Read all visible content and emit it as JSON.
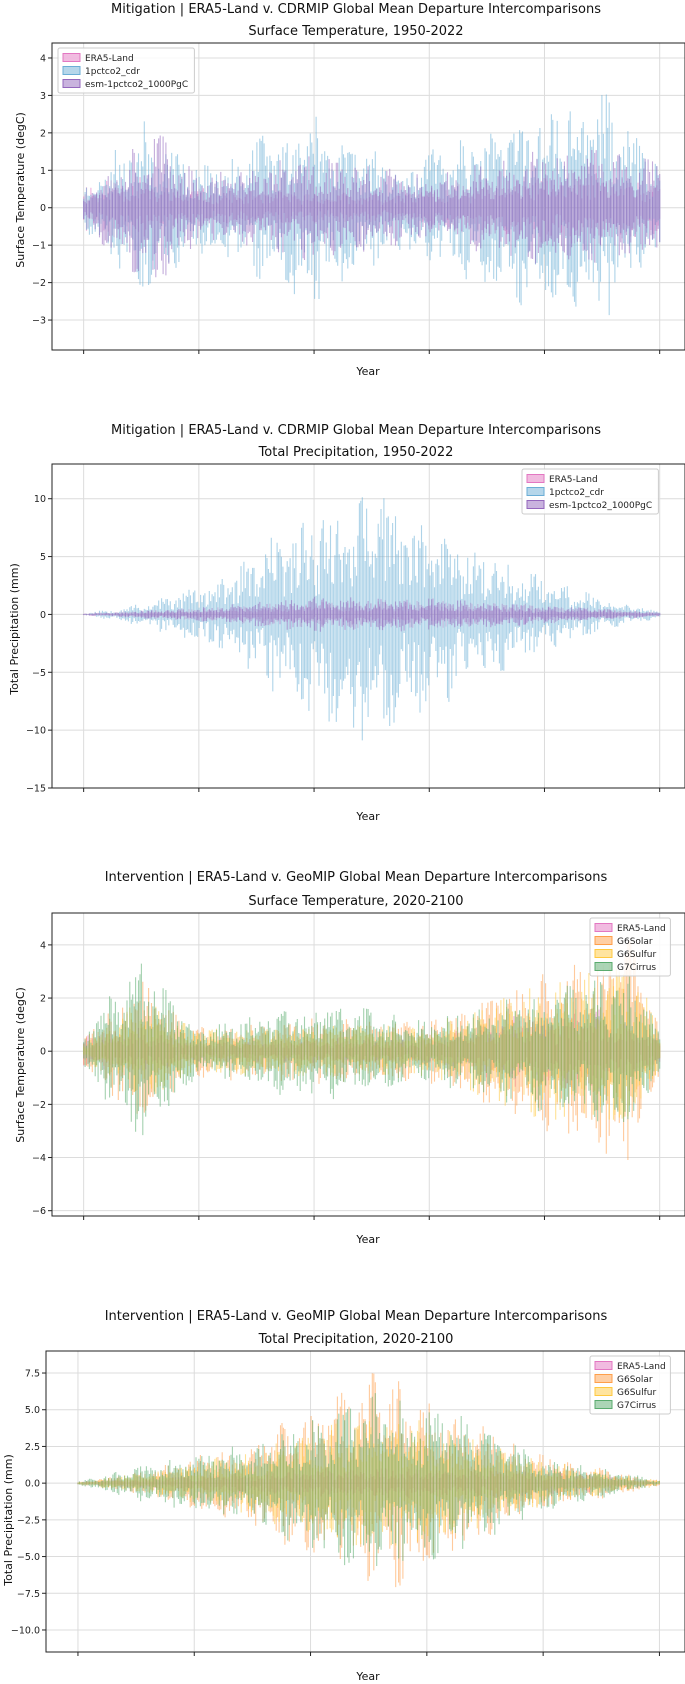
{
  "chart_data": [
    {
      "type": "area",
      "title": "Mitigation | ERA5-Land v. CDRMIP Global Mean Departure Intercomparisons",
      "subtitle": "Surface Temperature, 1950-2022",
      "xlabel": "Year",
      "ylabel": "Surface Temperature (degC)",
      "ylim": [
        -3.8,
        4.4
      ],
      "yticks": [
        -3,
        -2,
        -1,
        0,
        1,
        2,
        3,
        4
      ],
      "ytick_labels": [
        "−3",
        "−2",
        "−1",
        "0",
        "1",
        "2",
        "3",
        "4"
      ],
      "x_range": [
        0,
        1
      ],
      "x_gridlines": [
        0.0,
        0.2,
        0.4,
        0.6,
        0.8,
        1.0
      ],
      "grid": true,
      "legend_location": "top-left",
      "series": [
        {
          "name": "ERA5-Land",
          "color": "#e377c2",
          "seed": 11,
          "envelope": [
            [
              0.0,
              0.7
            ],
            [
              0.08,
              0.9
            ],
            [
              0.16,
              0.6
            ],
            [
              0.3,
              0.5
            ],
            [
              0.5,
              0.4
            ],
            [
              0.75,
              0.9
            ],
            [
              0.9,
              1.1
            ],
            [
              1.0,
              0.8
            ]
          ]
        },
        {
          "name": "1pctco2_cdr",
          "color": "#6baed6",
          "seed": 23,
          "envelope": [
            [
              0.0,
              0.6
            ],
            [
              0.1,
              2.4
            ],
            [
              0.2,
              1.2
            ],
            [
              0.4,
              2.7
            ],
            [
              0.55,
              1.2
            ],
            [
              0.75,
              2.6
            ],
            [
              0.9,
              3.2
            ],
            [
              1.0,
              1.3
            ]
          ]
        },
        {
          "name": "esm-1pctco2_1000PgC",
          "color": "#9467bd",
          "seed": 37,
          "envelope": [
            [
              0.0,
              0.5
            ],
            [
              0.12,
              2.3
            ],
            [
              0.2,
              0.9
            ],
            [
              0.4,
              1.5
            ],
            [
              0.6,
              0.9
            ],
            [
              0.8,
              1.6
            ],
            [
              0.93,
              1.6
            ],
            [
              1.0,
              1.3
            ]
          ]
        }
      ]
    },
    {
      "type": "area",
      "title": "Mitigation | ERA5-Land v. CDRMIP Global Mean Departure Intercomparisons",
      "subtitle": "Total Precipitation, 1950-2022",
      "xlabel": "Year",
      "ylabel": "Total Precipitation (mm)",
      "ylim": [
        -15,
        13
      ],
      "yticks": [
        -15,
        -10,
        -5,
        0,
        5,
        10
      ],
      "ytick_labels": [
        "−15",
        "−10",
        "−5",
        "0",
        "5",
        "10"
      ],
      "x_range": [
        0,
        1
      ],
      "x_gridlines": [
        0.0,
        0.2,
        0.4,
        0.6,
        0.8,
        1.0
      ],
      "grid": true,
      "legend_location": "top-right",
      "series": [
        {
          "name": "ERA5-Land",
          "color": "#e377c2",
          "seed": 41,
          "envelope": [
            [
              0.0,
              0.1
            ],
            [
              0.2,
              0.6
            ],
            [
              0.4,
              1.2
            ],
            [
              0.55,
              1.3
            ],
            [
              0.75,
              1.0
            ],
            [
              0.9,
              0.5
            ],
            [
              1.0,
              0.2
            ]
          ]
        },
        {
          "name": "1pctco2_cdr",
          "color": "#6baed6",
          "seed": 53,
          "envelope": [
            [
              0.0,
              0.1
            ],
            [
              0.1,
              1.0
            ],
            [
              0.25,
              3.5
            ],
            [
              0.4,
              10.0
            ],
            [
              0.5,
              11.5
            ],
            [
              0.6,
              9.0
            ],
            [
              0.75,
              4.5
            ],
            [
              0.9,
              1.5
            ],
            [
              1.0,
              0.3
            ]
          ]
        },
        {
          "name": "esm-1pctco2_1000PgC",
          "color": "#9467bd",
          "seed": 67,
          "envelope": [
            [
              0.0,
              0.1
            ],
            [
              0.2,
              0.6
            ],
            [
              0.4,
              1.6
            ],
            [
              0.55,
              1.6
            ],
            [
              0.75,
              1.0
            ],
            [
              0.9,
              0.5
            ],
            [
              1.0,
              0.2
            ]
          ]
        }
      ]
    },
    {
      "type": "area",
      "title": "Intervention | ERA5-Land v. GeoMIP Global Mean Departure Intercomparisons",
      "subtitle": "Surface Temperature, 2020-2100",
      "xlabel": "Year",
      "ylabel": "Surface Temperature (degC)",
      "ylim": [
        -6.2,
        5.2
      ],
      "yticks": [
        -6,
        -4,
        -2,
        0,
        2,
        4
      ],
      "ytick_labels": [
        "−6",
        "−4",
        "−2",
        "0",
        "2",
        "4"
      ],
      "x_range": [
        0,
        1
      ],
      "x_gridlines": [
        0.0,
        0.2,
        0.4,
        0.6,
        0.8,
        1.0
      ],
      "grid": true,
      "legend_location": "top-right",
      "series": [
        {
          "name": "ERA5-Land",
          "color": "#e377c2",
          "seed": 71,
          "envelope": [
            [
              0.0,
              0.7
            ],
            [
              0.1,
              0.9
            ],
            [
              0.2,
              0.4
            ],
            [
              0.4,
              0.5
            ],
            [
              0.6,
              0.5
            ],
            [
              0.75,
              1.4
            ],
            [
              0.9,
              1.6
            ],
            [
              1.0,
              0.6
            ]
          ]
        },
        {
          "name": "G6Solar",
          "color": "#ff9f4a",
          "seed": 83,
          "envelope": [
            [
              0.0,
              0.6
            ],
            [
              0.1,
              3.0
            ],
            [
              0.18,
              1.0
            ],
            [
              0.4,
              1.3
            ],
            [
              0.6,
              1.2
            ],
            [
              0.8,
              3.0
            ],
            [
              0.95,
              4.5
            ],
            [
              1.0,
              0.9
            ]
          ]
        },
        {
          "name": "G6Sulfur",
          "color": "#ffc940",
          "seed": 97,
          "envelope": [
            [
              0.0,
              0.5
            ],
            [
              0.1,
              2.0
            ],
            [
              0.2,
              0.9
            ],
            [
              0.4,
              1.0
            ],
            [
              0.6,
              1.0
            ],
            [
              0.8,
              2.7
            ],
            [
              0.95,
              3.5
            ],
            [
              1.0,
              0.8
            ]
          ]
        },
        {
          "name": "G7Cirrus",
          "color": "#5aab6e",
          "seed": 109,
          "envelope": [
            [
              0.0,
              0.8
            ],
            [
              0.1,
              3.8
            ],
            [
              0.2,
              0.9
            ],
            [
              0.4,
              2.0
            ],
            [
              0.6,
              1.2
            ],
            [
              0.8,
              2.4
            ],
            [
              0.95,
              3.2
            ],
            [
              1.0,
              0.9
            ]
          ]
        }
      ]
    },
    {
      "type": "area",
      "title": "Intervention | ERA5-Land v. GeoMIP Global Mean Departure Intercomparisons",
      "subtitle": "Total Precipitation, 2020-2100",
      "xlabel": "Year",
      "ylabel": "Total Precipitation (mm)",
      "ylim": [
        -11.5,
        9.0
      ],
      "yticks": [
        -10.0,
        -7.5,
        -5.0,
        -2.5,
        0.0,
        2.5,
        5.0,
        7.5
      ],
      "ytick_labels": [
        "−10.0",
        "−7.5",
        "−5.0",
        "−2.5",
        "0.0",
        "2.5",
        "5.0",
        "7.5"
      ],
      "x_range": [
        0,
        1
      ],
      "x_gridlines": [
        0.0,
        0.2,
        0.4,
        0.6,
        0.8,
        1.0
      ],
      "grid": true,
      "legend_location": "top-right",
      "series": [
        {
          "name": "ERA5-Land",
          "color": "#e377c2",
          "seed": 113,
          "envelope": [
            [
              0.0,
              0.1
            ],
            [
              0.2,
              0.6
            ],
            [
              0.4,
              1.0
            ],
            [
              0.55,
              1.1
            ],
            [
              0.75,
              1.1
            ],
            [
              0.9,
              0.6
            ],
            [
              1.0,
              0.1
            ]
          ]
        },
        {
          "name": "G6Solar",
          "color": "#ff9f4a",
          "seed": 127,
          "envelope": [
            [
              0.0,
              0.1
            ],
            [
              0.1,
              0.8
            ],
            [
              0.3,
              3.0
            ],
            [
              0.45,
              6.5
            ],
            [
              0.52,
              8.0
            ],
            [
              0.62,
              5.5
            ],
            [
              0.8,
              2.0
            ],
            [
              1.0,
              0.2
            ]
          ]
        },
        {
          "name": "G6Sulfur",
          "color": "#ffc940",
          "seed": 131,
          "envelope": [
            [
              0.0,
              0.1
            ],
            [
              0.1,
              0.7
            ],
            [
              0.3,
              2.3
            ],
            [
              0.5,
              5.0
            ],
            [
              0.6,
              4.5
            ],
            [
              0.8,
              1.6
            ],
            [
              1.0,
              0.2
            ]
          ]
        },
        {
          "name": "G7Cirrus",
          "color": "#5aab6e",
          "seed": 139,
          "envelope": [
            [
              0.0,
              0.1
            ],
            [
              0.1,
              1.2
            ],
            [
              0.3,
              2.8
            ],
            [
              0.5,
              6.5
            ],
            [
              0.65,
              5.0
            ],
            [
              0.8,
              2.0
            ],
            [
              1.0,
              0.2
            ]
          ]
        }
      ]
    }
  ]
}
